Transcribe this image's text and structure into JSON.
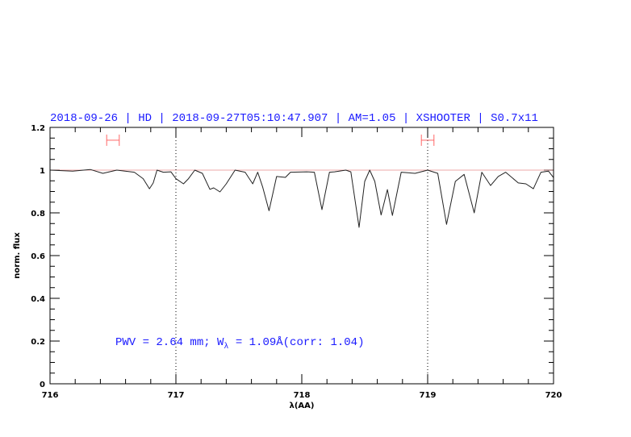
{
  "chart_data": {
    "type": "line",
    "title": "2018-09-26 | HD | 2018-09-27T05:10:47.907 | AM=1.05 | XSHOOTER | S0.7x11",
    "xlabel": "λ(AA)",
    "ylabel": "norm. flux",
    "xlim": [
      716,
      720
    ],
    "ylim": [
      0,
      1.2
    ],
    "xticks": [
      "716",
      "717",
      "718",
      "719",
      "720"
    ],
    "yticks": [
      "0",
      "0.2",
      "0.4",
      "0.6",
      "0.8",
      "1",
      "1.2"
    ],
    "grid": false,
    "reference_line": 1.0,
    "vertical_markers": [
      717,
      719
    ],
    "intervals": [
      {
        "x": [
          716.45,
          716.55
        ],
        "y": 1.14
      },
      {
        "x": [
          718.95,
          719.05
        ],
        "y": 1.14
      }
    ],
    "annotation": {
      "prefix": "PWV = 2.64 mm; W",
      "sub": "λ",
      "suffix": " = 1.09Å(corr: 1.04)"
    },
    "colors": {
      "spectrum": "#222222",
      "reference": "#e07070",
      "intervals": "#ff6666",
      "text": "#1a1aff"
    },
    "series": [
      {
        "x": [
          716.0,
          716.18,
          716.32,
          716.42,
          716.53,
          716.67,
          716.74,
          716.79,
          716.82,
          716.85,
          716.9,
          716.96,
          717.0,
          717.06,
          717.1,
          717.15,
          717.21,
          717.27,
          717.3,
          717.35,
          717.4,
          717.47,
          717.55,
          717.61,
          717.65,
          717.69,
          717.74,
          717.8,
          717.87,
          717.91,
          718.04,
          718.1,
          718.16,
          718.22,
          718.26,
          718.35,
          718.39,
          718.455,
          718.5,
          718.54,
          718.58,
          718.63,
          718.68,
          718.72,
          718.79,
          718.9,
          719.0,
          719.08,
          719.15,
          719.22,
          719.29,
          719.37,
          719.43,
          719.5,
          719.56,
          719.62,
          719.72,
          719.78,
          719.84,
          719.9,
          719.96,
          720.0
        ],
        "y": [
          1.0,
          0.995,
          1.003,
          0.985,
          1.0,
          0.99,
          0.96,
          0.913,
          0.94,
          1.0,
          0.99,
          0.992,
          0.96,
          0.936,
          0.96,
          1.0,
          0.985,
          0.91,
          0.917,
          0.898,
          0.936,
          1.0,
          0.99,
          0.936,
          0.99,
          0.92,
          0.81,
          0.97,
          0.966,
          0.99,
          0.992,
          0.99,
          0.815,
          0.99,
          0.992,
          1.0,
          0.992,
          0.732,
          0.947,
          1.0,
          0.947,
          0.79,
          0.909,
          0.788,
          0.99,
          0.985,
          1.0,
          0.985,
          0.746,
          0.947,
          0.98,
          0.8,
          0.99,
          0.928,
          0.97,
          0.99,
          0.94,
          0.936,
          0.913,
          0.99,
          0.995,
          0.965
        ]
      }
    ]
  }
}
